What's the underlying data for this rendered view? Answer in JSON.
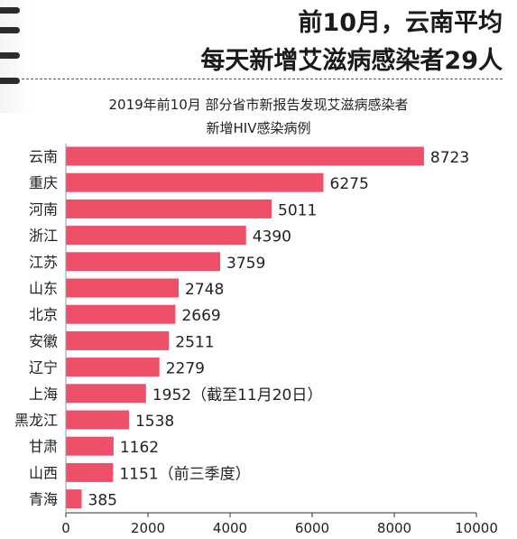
{
  "header": {
    "line1": "前10月，云南平均",
    "line2": "每天新增艾滋病感染者29人"
  },
  "chart_data": {
    "type": "bar",
    "orientation": "horizontal",
    "title": "2019年前10月 部分省市新报告发现艾滋病感染者",
    "subtitle": "新增HIV感染病例",
    "categories": [
      "云南",
      "重庆",
      "河南",
      "浙江",
      "江苏",
      "山东",
      "北京",
      "安徽",
      "辽宁",
      "上海",
      "黑龙江",
      "甘肃",
      "山西",
      "青海"
    ],
    "values": [
      8723,
      6275,
      5011,
      4390,
      3759,
      2748,
      2669,
      2511,
      2279,
      1952,
      1538,
      1162,
      1151,
      385
    ],
    "value_labels": [
      "8723",
      "6275",
      "5011",
      "4390",
      "3759",
      "2748",
      "2669",
      "2511",
      "2279",
      "1952（截至11月20日）",
      "1538",
      "1162",
      "1151（前三季度）",
      "385"
    ],
    "xlim": [
      0,
      10000
    ],
    "xticks": [
      0,
      2000,
      4000,
      6000,
      8000,
      10000
    ],
    "bar_color": "#ef5069",
    "grid": false
  }
}
